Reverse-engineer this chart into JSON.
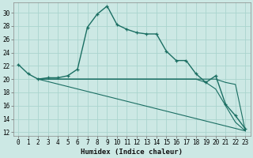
{
  "xlabel": "Humidex (Indice chaleur)",
  "background_color": "#cce8e4",
  "grid_color": "#aad4ce",
  "line_color": "#1a6e62",
  "xlim": [
    -0.5,
    23.5
  ],
  "ylim": [
    11.5,
    31.5
  ],
  "yticks": [
    12,
    14,
    16,
    18,
    20,
    22,
    24,
    26,
    28,
    30
  ],
  "xticks": [
    0,
    1,
    2,
    3,
    4,
    5,
    6,
    7,
    8,
    9,
    10,
    11,
    12,
    13,
    14,
    15,
    16,
    17,
    18,
    19,
    20,
    21,
    22,
    23
  ],
  "curve1_x": [
    0,
    1,
    2,
    3,
    4,
    5,
    6,
    7,
    8,
    9,
    10,
    11,
    12,
    13,
    14,
    15,
    16,
    17,
    18,
    19,
    20,
    21,
    22,
    23
  ],
  "curve1_y": [
    22.2,
    20.8,
    20.0,
    20.2,
    20.2,
    20.5,
    21.5,
    27.8,
    29.8,
    31.0,
    28.2,
    27.5,
    27.0,
    26.8,
    26.8,
    24.2,
    22.8,
    22.8,
    20.8,
    19.5,
    20.5,
    16.2,
    14.5,
    12.5
  ],
  "curve2_x": [
    2,
    3,
    4,
    5,
    6,
    7,
    8,
    9,
    10,
    11,
    12,
    13,
    14,
    15,
    16,
    17,
    18,
    19,
    20,
    21,
    22,
    23
  ],
  "curve2_y": [
    20.0,
    20.0,
    20.0,
    20.0,
    20.0,
    20.0,
    20.0,
    20.0,
    20.0,
    20.0,
    20.0,
    20.0,
    20.0,
    20.0,
    20.0,
    20.0,
    20.0,
    20.0,
    20.0,
    19.5,
    19.2,
    12.2
  ],
  "curve3_x": [
    2,
    3,
    4,
    5,
    6,
    7,
    8,
    9,
    10,
    11,
    12,
    13,
    14,
    15,
    16,
    17,
    18,
    19,
    20,
    21,
    22,
    23
  ],
  "curve3_y": [
    20.0,
    20.0,
    20.0,
    20.0,
    20.0,
    20.0,
    20.0,
    20.0,
    20.0,
    20.0,
    20.0,
    20.0,
    20.0,
    20.0,
    20.0,
    20.0,
    20.0,
    19.5,
    18.5,
    16.0,
    13.5,
    12.2
  ],
  "curve4_x": [
    2,
    23
  ],
  "curve4_y": [
    20.0,
    12.2
  ],
  "xlabel_fontsize": 6.5,
  "tick_fontsize": 5.5
}
